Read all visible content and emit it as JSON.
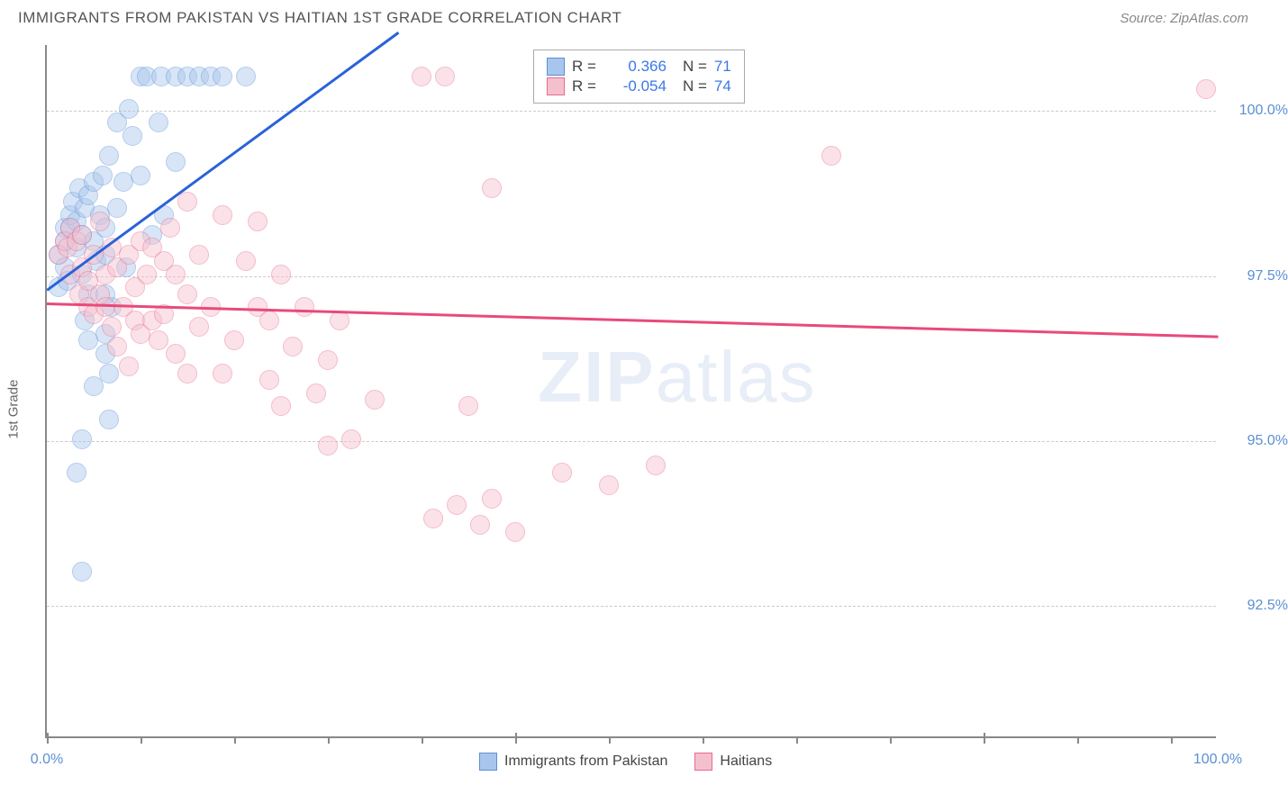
{
  "header": {
    "title": "IMMIGRANTS FROM PAKISTAN VS HAITIAN 1ST GRADE CORRELATION CHART",
    "source": "Source: ZipAtlas.com"
  },
  "watermark": {
    "bold": "ZIP",
    "light": "atlas"
  },
  "yaxis": {
    "title": "1st Grade",
    "title_fontsize": 15
  },
  "chart": {
    "type": "scatter",
    "background_color": "#ffffff",
    "grid_color": "#cccccc",
    "axis_color": "#888888",
    "xlim": [
      0,
      100
    ],
    "ylim": [
      90.5,
      101
    ],
    "yticks": [
      {
        "value": 92.5,
        "label": "92.5%"
      },
      {
        "value": 95.0,
        "label": "95.0%"
      },
      {
        "value": 97.5,
        "label": "97.5%"
      },
      {
        "value": 100.0,
        "label": "100.0%"
      }
    ],
    "xticks_major": [
      0,
      40,
      80
    ],
    "xticks_minor": [
      8,
      16,
      24,
      32,
      48,
      56,
      64,
      72,
      88,
      96
    ],
    "xlabels": [
      {
        "value": 0,
        "label": "0.0%"
      },
      {
        "value": 100,
        "label": "100.0%"
      }
    ],
    "marker_radius": 11,
    "marker_opacity": 0.45,
    "series": [
      {
        "name": "Immigrants from Pakistan",
        "color_fill": "#a8c6ed",
        "color_stroke": "#5b8fd6",
        "trend_color": "#2962d9",
        "R": "0.366",
        "N": "71",
        "trend": {
          "x1": 0,
          "y1": 97.3,
          "x2": 30,
          "y2": 101.2
        },
        "points": [
          [
            1,
            97.3
          ],
          [
            1,
            97.8
          ],
          [
            1.5,
            98.0
          ],
          [
            1.5,
            98.2
          ],
          [
            1.5,
            97.6
          ],
          [
            1.8,
            97.4
          ],
          [
            2,
            98.2
          ],
          [
            2,
            98.4
          ],
          [
            2.2,
            98.6
          ],
          [
            2.5,
            97.9
          ],
          [
            2.5,
            98.3
          ],
          [
            2.8,
            98.8
          ],
          [
            3,
            98.1
          ],
          [
            3,
            97.5
          ],
          [
            3.2,
            98.5
          ],
          [
            3.5,
            98.7
          ],
          [
            3.5,
            97.2
          ],
          [
            3.2,
            96.8
          ],
          [
            3.5,
            96.5
          ],
          [
            4,
            98.9
          ],
          [
            4,
            98.0
          ],
          [
            4.2,
            97.7
          ],
          [
            4.5,
            98.4
          ],
          [
            4.8,
            99.0
          ],
          [
            5,
            98.2
          ],
          [
            5,
            97.8
          ],
          [
            5.3,
            99.3
          ],
          [
            5.5,
            97.0
          ],
          [
            5,
            96.6
          ],
          [
            5,
            96.3
          ],
          [
            5.3,
            96.0
          ],
          [
            5.3,
            95.3
          ],
          [
            4,
            95.8
          ],
          [
            3,
            95.0
          ],
          [
            2.5,
            94.5
          ],
          [
            6,
            99.8
          ],
          [
            6,
            98.5
          ],
          [
            6.5,
            98.9
          ],
          [
            6.8,
            97.6
          ],
          [
            7,
            100.0
          ],
          [
            7.3,
            99.6
          ],
          [
            8,
            100.5
          ],
          [
            8,
            99.0
          ],
          [
            8.5,
            100.5
          ],
          [
            9,
            98.1
          ],
          [
            9.5,
            99.8
          ],
          [
            9.8,
            100.5
          ],
          [
            10,
            98.4
          ],
          [
            11,
            100.5
          ],
          [
            11,
            99.2
          ],
          [
            12,
            100.5
          ],
          [
            13,
            100.5
          ],
          [
            14,
            100.5
          ],
          [
            15,
            100.5
          ],
          [
            17,
            100.5
          ],
          [
            3,
            93.0
          ],
          [
            5,
            97.2
          ]
        ]
      },
      {
        "name": "Haitians",
        "color_fill": "#f5c0ce",
        "color_stroke": "#e86a8f",
        "trend_color": "#e84a7a",
        "R": "-0.054",
        "N": "74",
        "trend": {
          "x1": 0,
          "y1": 97.1,
          "x2": 100,
          "y2": 96.6
        },
        "points": [
          [
            1,
            97.8
          ],
          [
            1.5,
            98.0
          ],
          [
            1.8,
            97.9
          ],
          [
            2,
            98.2
          ],
          [
            2,
            97.5
          ],
          [
            2.5,
            98.0
          ],
          [
            2.8,
            97.2
          ],
          [
            3,
            97.6
          ],
          [
            3,
            98.1
          ],
          [
            3.5,
            97.0
          ],
          [
            3.5,
            97.4
          ],
          [
            4,
            97.8
          ],
          [
            4,
            96.9
          ],
          [
            4.5,
            97.2
          ],
          [
            4.5,
            98.3
          ],
          [
            5,
            97.0
          ],
          [
            5,
            97.5
          ],
          [
            5.5,
            96.7
          ],
          [
            5.5,
            97.9
          ],
          [
            6,
            97.6
          ],
          [
            6,
            96.4
          ],
          [
            6.5,
            97.0
          ],
          [
            7,
            97.8
          ],
          [
            7,
            96.1
          ],
          [
            7.5,
            96.8
          ],
          [
            7.5,
            97.3
          ],
          [
            8,
            96.6
          ],
          [
            8,
            98.0
          ],
          [
            8.5,
            97.5
          ],
          [
            9,
            96.8
          ],
          [
            9,
            97.9
          ],
          [
            9.5,
            96.5
          ],
          [
            10,
            97.7
          ],
          [
            10,
            96.9
          ],
          [
            10.5,
            98.2
          ],
          [
            11,
            96.3
          ],
          [
            11,
            97.5
          ],
          [
            12,
            96.0
          ],
          [
            12,
            97.2
          ],
          [
            12,
            98.6
          ],
          [
            13,
            97.8
          ],
          [
            13,
            96.7
          ],
          [
            14,
            97.0
          ],
          [
            15,
            96.0
          ],
          [
            15,
            98.4
          ],
          [
            16,
            96.5
          ],
          [
            17,
            97.7
          ],
          [
            18,
            98.3
          ],
          [
            18,
            97.0
          ],
          [
            19,
            95.9
          ],
          [
            19,
            96.8
          ],
          [
            20,
            97.5
          ],
          [
            20,
            95.5
          ],
          [
            21,
            96.4
          ],
          [
            22,
            97.0
          ],
          [
            23,
            95.7
          ],
          [
            24,
            96.2
          ],
          [
            24,
            94.9
          ],
          [
            25,
            96.8
          ],
          [
            26,
            95.0
          ],
          [
            28,
            95.6
          ],
          [
            32,
            100.5
          ],
          [
            33,
            93.8
          ],
          [
            34,
            100.5
          ],
          [
            35,
            94.0
          ],
          [
            36,
            95.5
          ],
          [
            37,
            93.7
          ],
          [
            38,
            98.8
          ],
          [
            38,
            94.1
          ],
          [
            40,
            93.6
          ],
          [
            44,
            94.5
          ],
          [
            48,
            94.3
          ],
          [
            52,
            94.6
          ],
          [
            67,
            99.3
          ],
          [
            99,
            100.3
          ]
        ]
      }
    ]
  },
  "legend_top": {
    "r_label": "R =",
    "n_label": "N ="
  },
  "legend_bottom": {
    "items": [
      "Immigrants from Pakistan",
      "Haitians"
    ]
  }
}
